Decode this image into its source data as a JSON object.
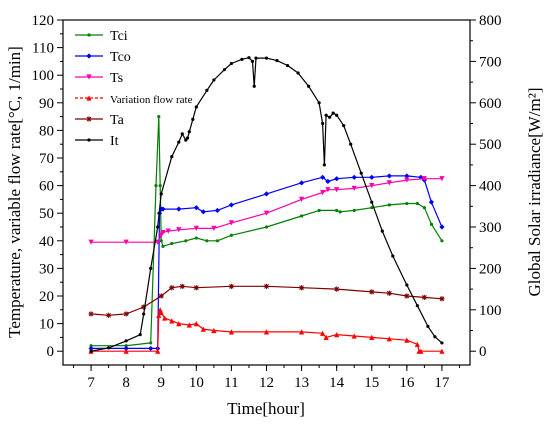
{
  "chart_data": {
    "type": "line",
    "xlabel": "Time[hour]",
    "ylabel_left": "Temperature, variable flow rate[°C, 1/min]",
    "ylabel_right": "Global Solar irradiance[W/m²]",
    "xlim": [
      6.2,
      17.8
    ],
    "ylim_left": [
      -5,
      120
    ],
    "ylim_right": [
      -33.3,
      800
    ],
    "x_ticks": [
      7,
      8,
      9,
      10,
      11,
      12,
      13,
      14,
      15,
      16,
      17
    ],
    "y_ticks_left": [
      0,
      10,
      20,
      30,
      40,
      50,
      60,
      70,
      80,
      90,
      100,
      110,
      120
    ],
    "y_ticks_right": [
      0,
      100,
      200,
      300,
      400,
      500,
      600,
      700,
      800
    ],
    "grid": false,
    "legend_position": "top-left",
    "series": [
      {
        "name": "Tci",
        "axis": "left",
        "color": "#008000",
        "marker": "dot",
        "x": [
          7,
          8,
          8.7,
          8.85,
          8.93,
          8.97,
          9.0,
          9.05,
          9.3,
          9.7,
          10.0,
          10.3,
          10.6,
          11.0,
          12.0,
          13.0,
          13.5,
          14.0,
          14.1,
          14.5,
          15.0,
          15.5,
          16.0,
          16.3,
          16.5,
          16.7,
          17.0
        ],
        "y": [
          2,
          2,
          3,
          60,
          85,
          60,
          40,
          38,
          39,
          40,
          41,
          40,
          40,
          42,
          45,
          49,
          51,
          51,
          50.5,
          51,
          52,
          53,
          53.5,
          53.5,
          52,
          46,
          40
        ]
      },
      {
        "name": "Tco",
        "axis": "left",
        "color": "#0000ff",
        "marker": "diamond",
        "x": [
          7,
          8,
          8.7,
          8.9,
          8.95,
          9.0,
          9.05,
          9.5,
          10.0,
          10.2,
          10.6,
          11.0,
          12.0,
          13.0,
          13.6,
          13.75,
          14.0,
          14.5,
          15.0,
          15.5,
          16.0,
          16.4,
          16.5,
          16.7,
          17.0
        ],
        "y": [
          1,
          1,
          1,
          1,
          50,
          51.5,
          51.5,
          51.5,
          52,
          50.5,
          51,
          53,
          57,
          61,
          63,
          61.5,
          62.5,
          63,
          63,
          63.5,
          63.5,
          63,
          62,
          54,
          45
        ]
      },
      {
        "name": "Ts",
        "axis": "left",
        "color": "#ff00aa",
        "marker": "triangle-down",
        "x": [
          7,
          8,
          8.9,
          9.0,
          9.05,
          9.2,
          9.5,
          10.0,
          10.5,
          11.0,
          12.0,
          13.0,
          13.6,
          13.75,
          14.0,
          14.5,
          15.0,
          15.5,
          16.0,
          16.5,
          17.0
        ],
        "y": [
          39.5,
          39.5,
          39.5,
          42,
          43,
          43.5,
          44,
          44.5,
          44.5,
          46.5,
          50,
          55,
          57.5,
          58.5,
          58.5,
          59,
          60,
          61,
          62,
          62.5,
          62.5
        ]
      },
      {
        "name": "Variation flow rate",
        "axis": "left",
        "color": "#ff0000",
        "marker": "triangle",
        "x": [
          7,
          8,
          8.9,
          8.93,
          8.97,
          9.0,
          9.1,
          9.3,
          9.5,
          9.8,
          10.0,
          10.2,
          10.5,
          11.0,
          12.0,
          13.0,
          13.6,
          13.7,
          14.0,
          14.5,
          15.0,
          15.5,
          16.0,
          16.3,
          16.35,
          16.4,
          17.0
        ],
        "y": [
          0,
          0,
          0,
          13,
          15,
          14,
          12,
          11,
          10,
          9.5,
          10,
          8,
          7.5,
          7,
          7,
          7,
          6.5,
          5,
          6,
          5.5,
          5,
          4.5,
          4,
          2.5,
          0,
          0,
          0
        ]
      },
      {
        "name": "Ta",
        "axis": "left",
        "color": "#800000",
        "marker": "star",
        "x": [
          7,
          7.5,
          8,
          8.5,
          9.0,
          9.3,
          9.6,
          10.0,
          11.0,
          12.0,
          13.0,
          14.0,
          15.0,
          15.5,
          16.0,
          16.5,
          17.0
        ],
        "y": [
          13.5,
          13,
          13.5,
          16,
          20,
          23,
          23.5,
          23,
          23.5,
          23.5,
          23,
          22.5,
          21.5,
          21,
          20,
          19.5,
          19
        ]
      },
      {
        "name": "It",
        "axis": "right",
        "color": "#000000",
        "marker": "dot",
        "x": [
          7,
          7.5,
          8,
          8.4,
          8.5,
          8.7,
          8.9,
          9.0,
          9.3,
          9.5,
          9.6,
          9.7,
          9.75,
          9.8,
          9.9,
          10.0,
          10.3,
          10.5,
          10.8,
          11.0,
          11.3,
          11.5,
          11.6,
          11.65,
          11.7,
          12.0,
          12.3,
          12.6,
          12.9,
          13.2,
          13.5,
          13.6,
          13.65,
          13.7,
          13.8,
          13.9,
          14.0,
          14.2,
          14.4,
          14.7,
          15.0,
          15.3,
          15.6,
          16.0,
          16.3,
          16.6,
          16.8,
          17.0
        ],
        "y": [
          0,
          8,
          25,
          40,
          90,
          200,
          300,
          380,
          470,
          505,
          525,
          510,
          515,
          530,
          560,
          590,
          630,
          655,
          680,
          695,
          705,
          709,
          700,
          640,
          708,
          708,
          702,
          690,
          672,
          640,
          600,
          550,
          450,
          570,
          565,
          575,
          570,
          545,
          500,
          430,
          360,
          290,
          230,
          160,
          110,
          60,
          35,
          20
        ]
      }
    ]
  },
  "legend": {
    "items": [
      {
        "label": "Tci",
        "color": "#008000"
      },
      {
        "label": "Tco",
        "color": "#0000ff"
      },
      {
        "label": "Ts",
        "color": "#ff00aa"
      },
      {
        "label": "Variation flow rate",
        "color": "#ff0000"
      },
      {
        "label": "Ta",
        "color": "#800000"
      },
      {
        "label": "It",
        "color": "#000000"
      }
    ]
  }
}
